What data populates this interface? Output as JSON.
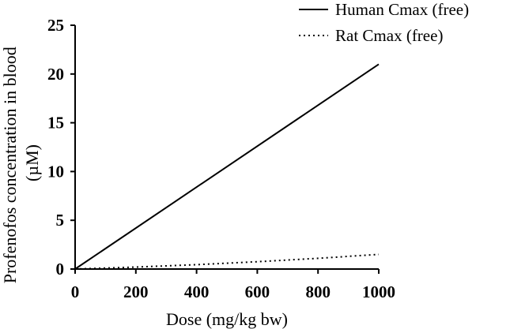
{
  "chart_data": {
    "type": "line",
    "xlabel": "Dose (mg/kg bw)",
    "ylabel_lines": [
      "Profenofos concentration in blood",
      "(µM)"
    ],
    "xlim": [
      0,
      1000
    ],
    "ylim": [
      0,
      25
    ],
    "xticks": [
      0,
      200,
      400,
      600,
      800,
      1000
    ],
    "yticks": [
      0,
      5,
      10,
      15,
      20,
      25
    ],
    "grid": false,
    "legend_position": "top-right",
    "series": [
      {
        "name": "Human Cmax  (free)",
        "style": "solid",
        "color": "#000000",
        "x": [
          0,
          1000
        ],
        "y": [
          0,
          21.0
        ]
      },
      {
        "name": "Rat Cmax (free)",
        "style": "dotted",
        "color": "#000000",
        "x": [
          0,
          200,
          400,
          600,
          800,
          1000
        ],
        "y": [
          0,
          0.2,
          0.45,
          0.75,
          1.1,
          1.5
        ]
      }
    ]
  }
}
